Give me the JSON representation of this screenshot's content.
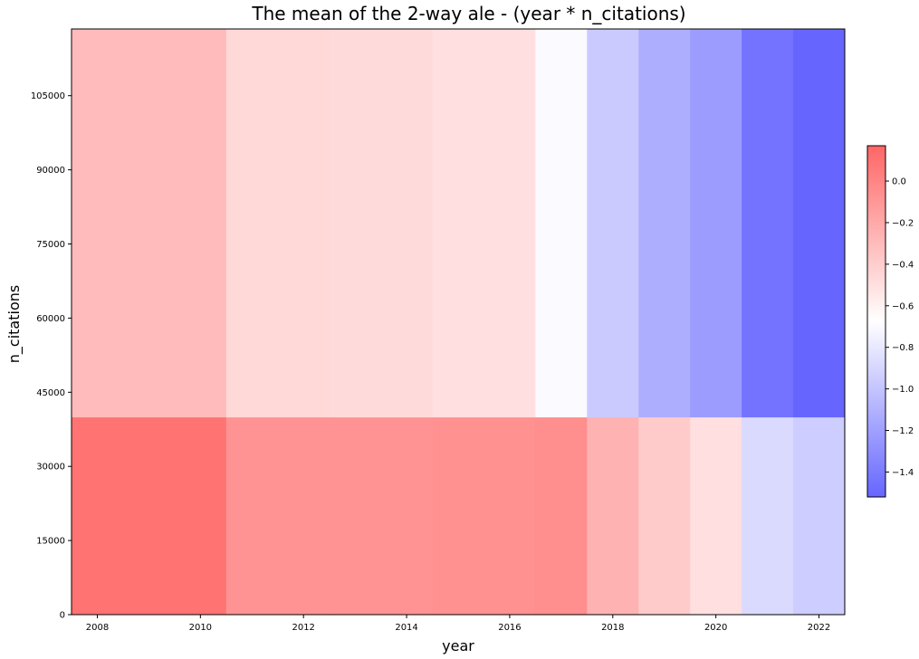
{
  "chart_data": {
    "type": "heatmap",
    "title": "The mean of the 2-way ale - (year * n_citations)",
    "xlabel": "year",
    "ylabel": "n_citations",
    "xlim": [
      2007.5,
      2022.5
    ],
    "ylim": [
      0,
      118500
    ],
    "x_ticks": [
      2008,
      2010,
      2012,
      2014,
      2016,
      2018,
      2020,
      2022
    ],
    "y_ticks": [
      0,
      15000,
      30000,
      45000,
      60000,
      75000,
      90000,
      105000
    ],
    "grid": false,
    "x_bins": [
      [
        2007.5,
        2010.5
      ],
      [
        2010.5,
        2012.5
      ],
      [
        2012.5,
        2014.5
      ],
      [
        2014.5,
        2016.5
      ],
      [
        2016.5,
        2017.5
      ],
      [
        2017.5,
        2018.5
      ],
      [
        2018.5,
        2019.5
      ],
      [
        2019.5,
        2020.5
      ],
      [
        2020.5,
        2021.5
      ],
      [
        2021.5,
        2022.5
      ]
    ],
    "y_bins": [
      [
        0,
        40000
      ],
      [
        40000,
        118500
      ]
    ],
    "values": [
      [
        0.1,
        -0.08,
        -0.08,
        -0.07,
        -0.05,
        -0.25,
        -0.38,
        -0.5,
        -0.88,
        -0.95
      ],
      [
        -0.3,
        -0.46,
        -0.47,
        -0.5,
        -0.7,
        -0.97,
        -1.12,
        -1.22,
        -1.45,
        -1.52
      ]
    ],
    "colorbar": {
      "vmin": -1.52,
      "vmax": 0.17,
      "ticks": [
        0.0,
        -0.2,
        -0.4,
        -0.6,
        -0.8,
        -1.0,
        -1.2,
        -1.4
      ],
      "tick_labels": [
        "0.0",
        "−0.2",
        "−0.4",
        "−0.6",
        "−0.8",
        "−1.0",
        "−1.2",
        "−1.4"
      ],
      "colormap": [
        "#6666ff",
        "#ffffff",
        "#ff6666"
      ]
    }
  }
}
